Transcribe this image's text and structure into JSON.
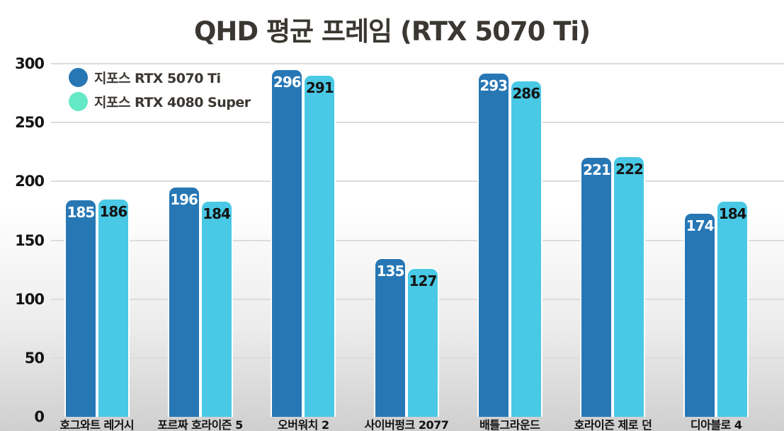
{
  "title": "QHD 평균 프레임 (RTX 5070 Ti)",
  "legend": {
    "items": [
      {
        "label": "지포스 RTX 5070 Ti",
        "swatch_color": "#2777b5"
      },
      {
        "label": "지포스 RTX 4080 Super",
        "swatch_color": "#63e9c5"
      }
    ]
  },
  "chart_data": {
    "type": "bar",
    "title": "QHD 평균 프레임 (RTX 5070 Ti)",
    "categories": [
      "호그와트 레거시",
      "포르짜 호라이즌 5",
      "오버워치 2",
      "사이버펑크 2077",
      "배틀그라운드",
      "호라이즌 제로 던",
      "디아블로 4"
    ],
    "series": [
      {
        "name": "지포스 RTX 5070 Ti",
        "bar_color": "#2777b5",
        "value_label_color": "#ffffff",
        "values": [
          185,
          196,
          296,
          135,
          293,
          221,
          174
        ]
      },
      {
        "name": "지포스 RTX 4080 Super",
        "bar_color": "#49c9e5",
        "legend_swatch_color": "#63e9c5",
        "value_label_color": "#141414",
        "values": [
          186,
          184,
          291,
          127,
          286,
          222,
          184
        ]
      }
    ],
    "xlabel": "",
    "ylabel": "",
    "ylim": [
      0,
      300
    ],
    "yticks": [
      0,
      50,
      100,
      150,
      200,
      250,
      300
    ],
    "grid": "horizontal",
    "legend_position": "top-left",
    "value_labels": "inside-top",
    "background": "white-to-gray-vertical-gradient"
  },
  "colors": {
    "gridline": "#dcdcdc",
    "title_text": "#3b3732",
    "axis_tick_text": "#141414",
    "category_text": "#111111"
  }
}
